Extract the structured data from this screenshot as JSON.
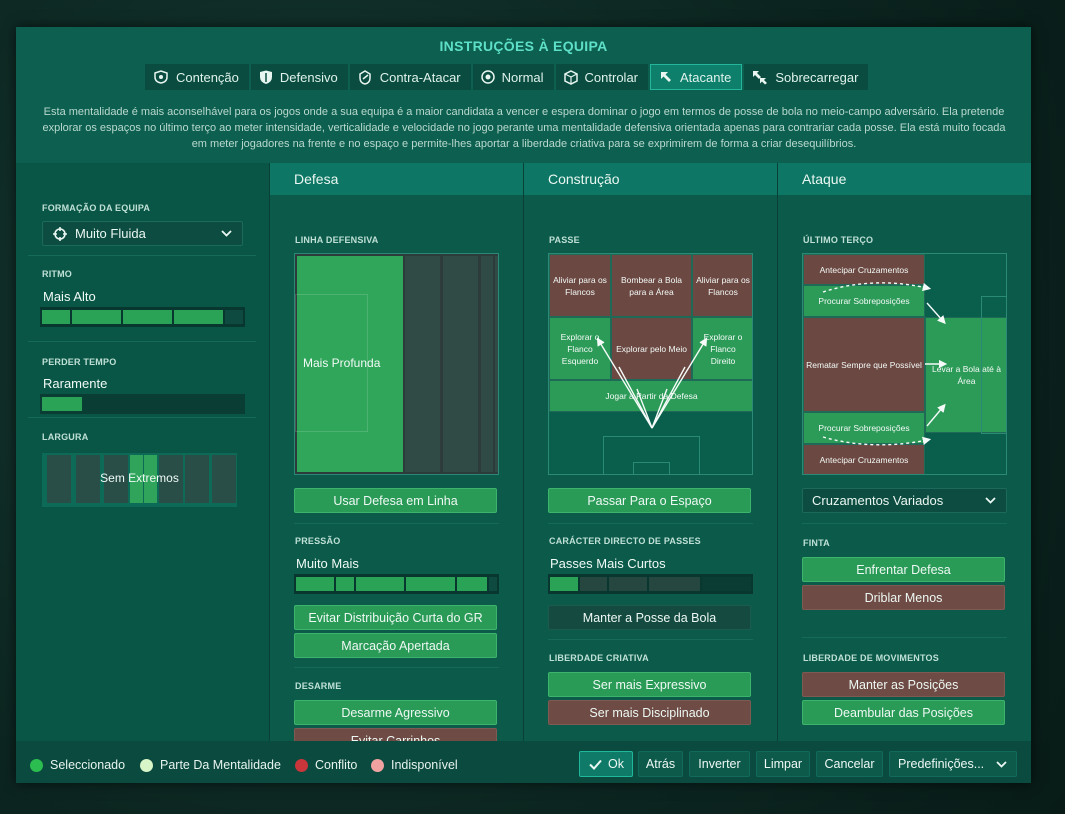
{
  "header": {
    "title": "INSTRUÇÕES À EQUIPA",
    "tabs": [
      {
        "label": "Contenção",
        "icon": "contain-icon"
      },
      {
        "label": "Defensivo",
        "icon": "shield-icon"
      },
      {
        "label": "Contra-Atacar",
        "icon": "counter-icon"
      },
      {
        "label": "Normal",
        "icon": "ball-icon"
      },
      {
        "label": "Controlar",
        "icon": "control-icon"
      },
      {
        "label": "Atacante",
        "icon": "attack-arrow-icon",
        "active": true
      },
      {
        "label": "Sobrecarregar",
        "icon": "overload-icon"
      }
    ],
    "description": "Esta mentalidade é mais aconselhável para os jogos onde a sua equipa é a maior candidata a vencer e espera dominar o jogo em termos de posse de bola no meio-campo adversário. Ela pretende explorar os espaços no último terço ao meter intensidade, verticalidade e velocidade no jogo perante uma mentalidade defensiva orientada apenas para contrariar cada posse. Ela está muito focada em meter jogadores na frente e no espaço e permite-lhes aportar a liberdade criativa para se exprimirem de forma a criar desequilíbrios."
  },
  "left": {
    "formation_label": "FORMAÇÃO DA EQUIPA",
    "formation_value": "Muito Fluida",
    "tempo_label": "RITMO",
    "tempo_value": "Mais Alto",
    "tempo_level": 0.8,
    "timewasting_label": "PERDER TEMPO",
    "timewasting_value": "Raramente",
    "timewasting_level": 0.2,
    "width_label": "LARGURA",
    "width_value": "Sem Extremos"
  },
  "defesa": {
    "title": "Defesa",
    "line_label": "LINHA DEFENSIVA",
    "line_value": "Mais Profunda",
    "line_button": "Usar Defesa em Linha",
    "press_label": "PRESSÃO",
    "press_value": "Muito Mais",
    "press_level": 1.0,
    "press_buttons": [
      "Evitar Distribuição Curta do GR",
      "Marcação Apertada"
    ],
    "tackle_label": "DESARME",
    "tackle_buttons": [
      "Desarme Agressivo",
      "Evitar Carrinhos"
    ]
  },
  "construcao": {
    "title": "Construção",
    "pass_label": "PASSE",
    "cells": {
      "clear_flanks": "Aliviar para os Flancos",
      "lob": "Bombear a Bola para a Área",
      "exploit_left": "Explorar o Flanco Esquerdo",
      "exploit_mid": "Explorar pelo Meio",
      "exploit_right": "Explorar o Flanco Direito",
      "play_out": "Jogar a Partir da Defesa"
    },
    "space_button": "Passar Para o Espaço",
    "direct_label": "CARÁCTER DIRECTO DE PASSES",
    "direct_value": "Passes Mais Curtos",
    "direct_level": 0.2,
    "possession_button": "Manter a Posse da Bola",
    "creative_label": "LIBERDADE CRIATIVA",
    "creative_buttons": [
      "Ser mais Expressivo",
      "Ser mais Disciplinado"
    ]
  },
  "ataque": {
    "title": "Ataque",
    "final_label": "ÚLTIMO TERÇO",
    "cells": {
      "early_cross": "Antecipar Cruzamentos",
      "overlap": "Procurar Sobreposições",
      "shoot": "Rematar Sempre que Possível",
      "work_box": "Levar a Bola até à Área"
    },
    "cross_value": "Cruzamentos Variados",
    "dribble_label": "FINTA",
    "dribble_buttons": [
      "Enfrentar Defesa",
      "Driblar Menos"
    ],
    "movement_label": "LIBERDADE DE MOVIMENTOS",
    "movement_buttons": [
      "Manter as Posições",
      "Deambular das Posições"
    ]
  },
  "footer": {
    "legend": [
      {
        "label": "Seleccionado",
        "color": "#2bbd4f"
      },
      {
        "label": "Parte Da Mentalidade",
        "color": "#d8f5c8"
      },
      {
        "label": "Conflito",
        "color": "#c8353a"
      },
      {
        "label": "Indisponível",
        "color": "#f0a2a0"
      }
    ],
    "buttons": {
      "ok": "Ok",
      "back": "Atrás",
      "invert": "Inverter",
      "clear": "Limpar",
      "cancel": "Cancelar",
      "presets": "Predefinições..."
    }
  }
}
